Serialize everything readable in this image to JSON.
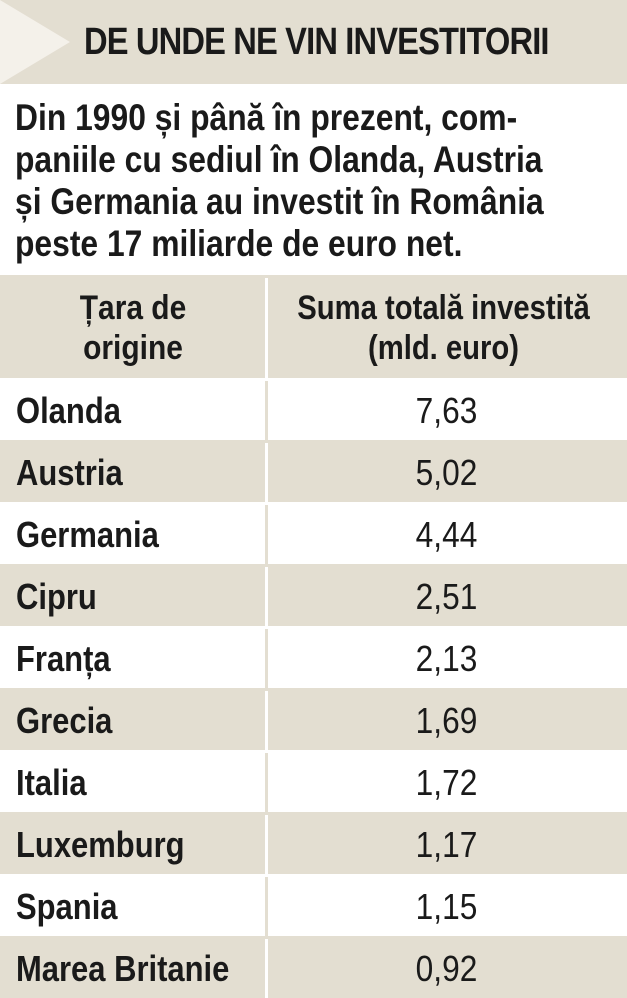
{
  "title": "DE UNDE NE VIN INVESTITORII",
  "intro": "Din 1990 și până în prezent, com-\npaniile cu sediul în Olanda, Austria\nși Germania au investit în România\npeste 17 miliarde de euro net.",
  "colors": {
    "background": "#e3ded1",
    "panel": "#ffffff",
    "text": "#1a1a1a",
    "arrow": "#f4f1ea"
  },
  "icons": {
    "title_marker": "arrow-right-icon"
  },
  "chart_data": {
    "type": "table",
    "columns": [
      "Țara de\norigine",
      "Suma totală investită\n(mld. euro)"
    ],
    "rows": [
      {
        "country": "Olanda",
        "value": "7,63"
      },
      {
        "country": "Austria",
        "value": "5,02"
      },
      {
        "country": "Germania",
        "value": "4,44"
      },
      {
        "country": "Cipru",
        "value": "2,51"
      },
      {
        "country": "Franța",
        "value": "2,13"
      },
      {
        "country": "Grecia",
        "value": "1,69"
      },
      {
        "country": "Italia",
        "value": "1,72"
      },
      {
        "country": "Luxemburg",
        "value": "1,17"
      },
      {
        "country": "Spania",
        "value": "1,15"
      },
      {
        "country": "Marea Britanie",
        "value": "0,92"
      }
    ]
  }
}
